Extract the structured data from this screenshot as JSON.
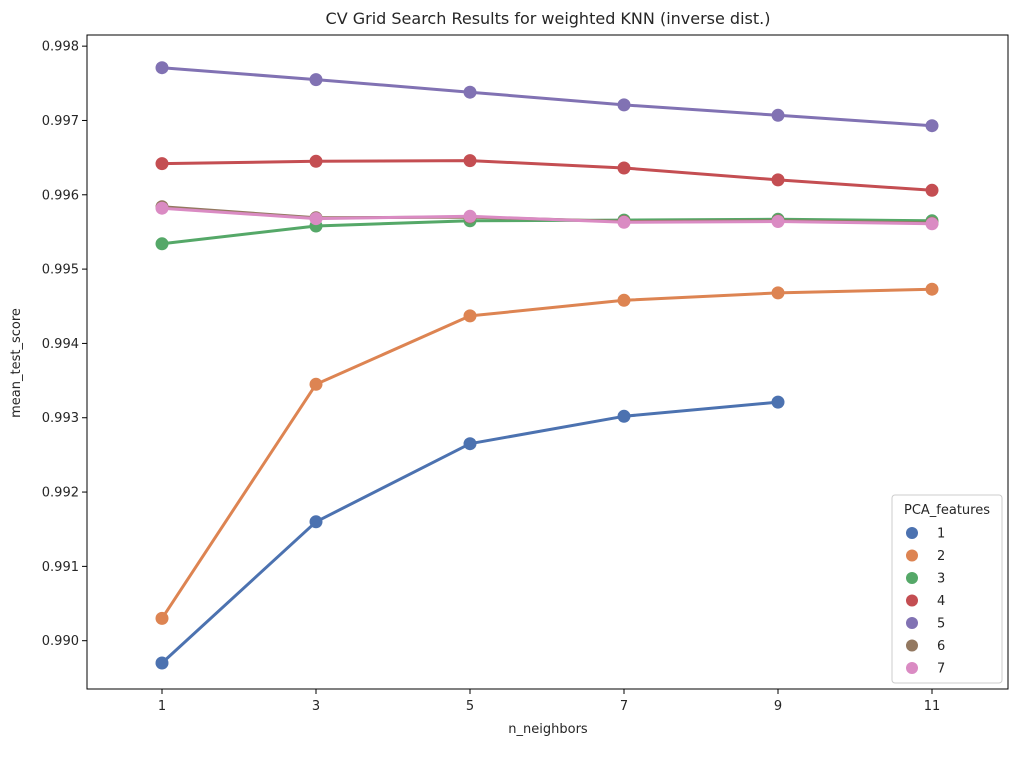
{
  "chart_data": {
    "type": "line",
    "title": "CV Grid Search Results for weighted KNN (inverse dist.)",
    "xlabel": "n_neighbors",
    "ylabel": "mean_test_score",
    "categories": [
      "1",
      "3",
      "5",
      "7",
      "9",
      "11"
    ],
    "ylim": [
      0.98935,
      0.99815
    ],
    "yticks": [
      "0.990",
      "0.991",
      "0.992",
      "0.993",
      "0.994",
      "0.995",
      "0.996",
      "0.997",
      "0.998"
    ],
    "grid": false,
    "legend": {
      "title": "PCA_features",
      "placement": "bottom-right"
    },
    "series": [
      {
        "name": "1",
        "color": "#4c72b0",
        "values": [
          0.9897,
          0.9916,
          0.99265,
          0.99302,
          0.99321,
          null
        ]
      },
      {
        "name": "2",
        "color": "#dd8452",
        "values": [
          0.9903,
          0.99345,
          0.99437,
          0.99458,
          0.99468,
          0.99473
        ]
      },
      {
        "name": "3",
        "color": "#55a868",
        "values": [
          0.99534,
          0.99558,
          0.99565,
          0.99566,
          0.99567,
          0.99565
        ]
      },
      {
        "name": "4",
        "color": "#c44e52",
        "values": [
          0.99642,
          0.99645,
          0.99646,
          0.99636,
          0.9962,
          0.99606
        ]
      },
      {
        "name": "5",
        "color": "#8172b3",
        "values": [
          0.99771,
          0.99755,
          0.99738,
          0.99721,
          0.99707,
          0.99693
        ]
      },
      {
        "name": "6",
        "color": "#937860",
        "values": [
          0.99584,
          0.99569,
          0.9957,
          0.99564,
          0.99565,
          0.99562
        ]
      },
      {
        "name": "7",
        "color": "#da8bc3",
        "values": [
          0.99582,
          0.99568,
          0.99571,
          0.99563,
          0.99564,
          0.99561
        ]
      }
    ]
  }
}
